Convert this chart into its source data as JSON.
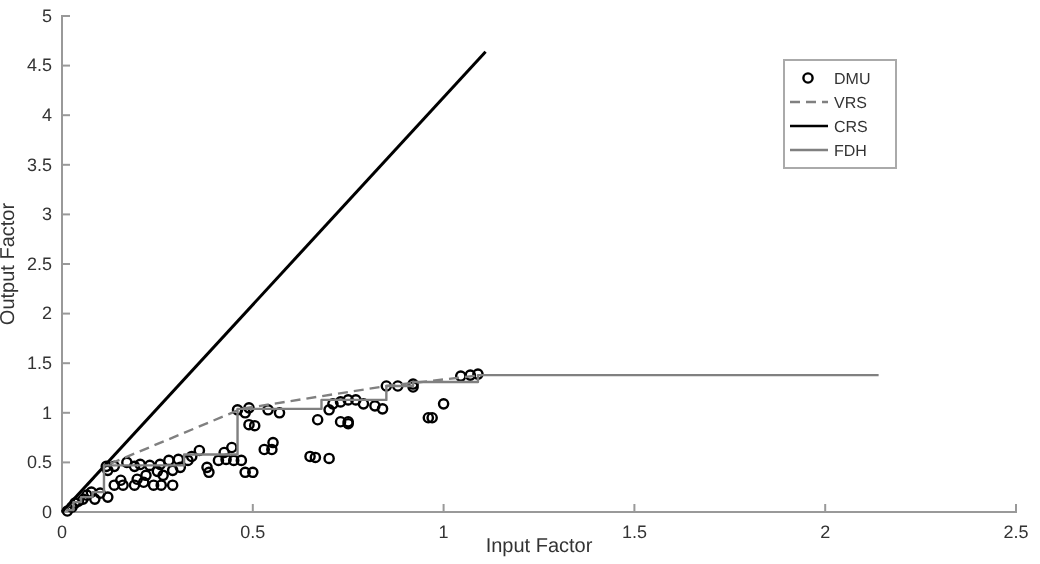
{
  "chart_data": {
    "type": "scatter",
    "xlabel": "Input Factor",
    "ylabel": "Output Factor",
    "xlim": [
      0,
      2.5
    ],
    "xticks": [
      0,
      0.5,
      1,
      1.5,
      2,
      2.5
    ],
    "ylim": [
      0,
      5
    ],
    "yticks": [
      0,
      0.5,
      1,
      1.5,
      2,
      2.5,
      3,
      3.5,
      4,
      4.5,
      5
    ],
    "grid": false,
    "legend": "top right",
    "series": [
      {
        "name": "DMU",
        "marker": "circle",
        "color": "#000000",
        "x": [
          0.116,
          0.137,
          0.17,
          0.19,
          0.205,
          0.23,
          0.257,
          0.28,
          0.305,
          0.31,
          0.29,
          0.25,
          0.265,
          0.22,
          0.197,
          0.154,
          0.137,
          0.16,
          0.19,
          0.214,
          0.24,
          0.26,
          0.29,
          0.12,
          0.086,
          0.065,
          0.043,
          0.026,
          0.014,
          0.034,
          0.1,
          0.055,
          0.077,
          0.12,
          0.33,
          0.34,
          0.36,
          0.38,
          0.385,
          0.41,
          0.425,
          0.43,
          0.445,
          0.45,
          0.47,
          0.46,
          0.48,
          0.49,
          0.49,
          0.505,
          0.48,
          0.5,
          0.53,
          0.55,
          0.553,
          0.54,
          0.57,
          0.65,
          0.664,
          0.67,
          0.7,
          0.7,
          0.71,
          0.73,
          0.75,
          0.77,
          0.79,
          0.73,
          0.75,
          0.75,
          0.82,
          0.84,
          0.85,
          0.88,
          0.92,
          0.92,
          1.0,
          0.96,
          0.97,
          1.045,
          1.07,
          1.09
        ],
        "values": [
          0.46,
          0.46,
          0.5,
          0.46,
          0.48,
          0.47,
          0.48,
          0.52,
          0.53,
          0.45,
          0.42,
          0.41,
          0.37,
          0.37,
          0.33,
          0.32,
          0.27,
          0.27,
          0.27,
          0.3,
          0.27,
          0.27,
          0.27,
          0.15,
          0.13,
          0.17,
          0.11,
          0.05,
          0.01,
          0.09,
          0.19,
          0.13,
          0.2,
          0.42,
          0.52,
          0.56,
          0.62,
          0.45,
          0.4,
          0.52,
          0.6,
          0.53,
          0.65,
          0.52,
          0.52,
          1.03,
          1.0,
          1.05,
          0.88,
          0.87,
          0.4,
          0.4,
          0.63,
          0.63,
          0.7,
          1.03,
          1.0,
          0.56,
          0.55,
          0.93,
          0.54,
          1.03,
          1.09,
          1.11,
          1.13,
          1.13,
          1.09,
          0.91,
          0.91,
          0.89,
          1.07,
          1.04,
          1.27,
          1.27,
          1.29,
          1.26,
          1.09,
          0.95,
          0.95,
          1.37,
          1.38,
          1.39
        ]
      },
      {
        "name": "VRS",
        "type": "line",
        "line_style": "dashed",
        "color": "#808080",
        "x": [
          0.01,
          0.11,
          0.47,
          0.85,
          1.1
        ],
        "values": [
          0.03,
          0.46,
          1.04,
          1.27,
          1.38
        ]
      },
      {
        "name": "CRS",
        "type": "line",
        "line_style": "solid",
        "color": "#000000",
        "x": [
          0,
          1.11
        ],
        "values": [
          0,
          4.64
        ]
      },
      {
        "name": "FDH",
        "type": "step",
        "line_style": "solid",
        "color": "#808080",
        "x": [
          0.01,
          0.03,
          0.05,
          0.08,
          0.11,
          0.32,
          0.46,
          0.68,
          0.85,
          0.92,
          1.09,
          2.14
        ],
        "values": [
          0.02,
          0.1,
          0.15,
          0.2,
          0.47,
          0.58,
          1.04,
          1.13,
          1.27,
          1.31,
          1.38,
          1.38
        ]
      }
    ]
  }
}
